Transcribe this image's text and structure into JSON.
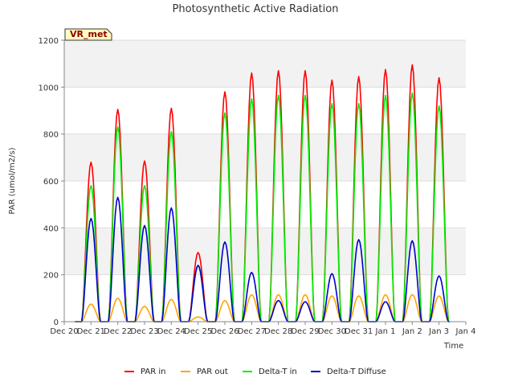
{
  "chart_data": {
    "type": "line",
    "title": "Photosynthetic Active Radiation",
    "xlabel": "Time",
    "ylabel": "PAR (umol/m2/s)",
    "ylim": [
      0,
      1200
    ],
    "yticks": [
      0,
      200,
      400,
      600,
      800,
      1000,
      1200
    ],
    "xlim": [
      "Dec 20",
      "Jan 4"
    ],
    "xtick_labels": [
      "Dec 20",
      "Dec 21",
      "Dec 22",
      "Dec 23",
      "Dec 24",
      "Dec 25",
      "Dec 26",
      "Dec 27",
      "Dec 28",
      "Dec 29",
      "Dec 30",
      "Dec 31",
      "Jan 1",
      "Jan 2",
      "Jan 3",
      "Jan 4"
    ],
    "background_bands": "alternating light grey horizontal bands",
    "site_badge": "VR_met",
    "legend_position": "bottom-center",
    "x": [
      "Dec 21",
      "Dec 22",
      "Dec 23",
      "Dec 24",
      "Dec 25",
      "Dec 26",
      "Dec 27",
      "Dec 28",
      "Dec 29",
      "Dec 30",
      "Dec 31",
      "Jan 1",
      "Jan 2",
      "Jan 3"
    ],
    "series": [
      {
        "name": "PAR in",
        "color": "#ff0000",
        "values": [
          680,
          905,
          685,
          910,
          295,
          980,
          1060,
          1070,
          1070,
          1030,
          1045,
          1075,
          1095,
          1040
        ]
      },
      {
        "name": "PAR out",
        "color": "#ffa500",
        "values": [
          75,
          100,
          65,
          95,
          20,
          90,
          115,
          115,
          115,
          110,
          110,
          115,
          115,
          110
        ]
      },
      {
        "name": "Delta-T in",
        "color": "#00ee00",
        "values": [
          580,
          830,
          580,
          810,
          240,
          890,
          950,
          965,
          965,
          930,
          930,
          965,
          975,
          920
        ]
      },
      {
        "name": "Delta-T Diffuse",
        "color": "#0000cc",
        "values": [
          440,
          530,
          410,
          485,
          240,
          340,
          210,
          90,
          85,
          205,
          350,
          85,
          345,
          195
        ]
      }
    ]
  }
}
